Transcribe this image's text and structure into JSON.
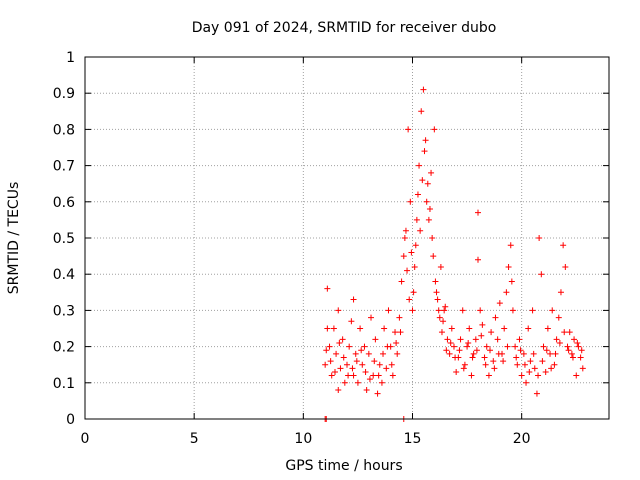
{
  "chart_data": {
    "type": "scatter",
    "title": "Day 091 of 2024, SRMTID for receiver dubo",
    "xlabel": "GPS time / hours",
    "ylabel": "SRMTID / TECUs",
    "xlim": [
      0,
      24
    ],
    "ylim": [
      0,
      1
    ],
    "xticks": [
      0,
      5,
      10,
      15,
      20
    ],
    "xtick_labels": [
      "0",
      "5",
      "10",
      "15",
      "20"
    ],
    "yticks": [
      0,
      0.1,
      0.2,
      0.3,
      0.4,
      0.5,
      0.6,
      0.7,
      0.8,
      0.9,
      1
    ],
    "ytick_labels": [
      "0",
      "0.1",
      "0.2",
      "0.3",
      "0.4",
      "0.5",
      "0.6",
      "0.7",
      "0.8",
      "0.9",
      "1"
    ],
    "grid": true,
    "marker": "+",
    "color": "#ff0000",
    "series": [
      {
        "name": "SRMTID",
        "points": [
          [
            11.0,
            0.0
          ],
          [
            11.05,
            0.0
          ],
          [
            14.6,
            0.0
          ],
          [
            11.0,
            0.15
          ],
          [
            11.1,
            0.25
          ],
          [
            11.1,
            0.36
          ],
          [
            11.2,
            0.2
          ],
          [
            11.3,
            0.12
          ],
          [
            11.4,
            0.25
          ],
          [
            11.5,
            0.18
          ],
          [
            11.6,
            0.08
          ],
          [
            11.6,
            0.3
          ],
          [
            11.7,
            0.14
          ],
          [
            11.8,
            0.22
          ],
          [
            11.9,
            0.1
          ],
          [
            12.0,
            0.15
          ],
          [
            12.1,
            0.2
          ],
          [
            12.2,
            0.27
          ],
          [
            12.3,
            0.33
          ],
          [
            12.3,
            0.12
          ],
          [
            12.4,
            0.18
          ],
          [
            12.5,
            0.1
          ],
          [
            12.6,
            0.25
          ],
          [
            12.7,
            0.15
          ],
          [
            12.8,
            0.2
          ],
          [
            12.9,
            0.08
          ],
          [
            13.0,
            0.18
          ],
          [
            13.1,
            0.28
          ],
          [
            13.2,
            0.12
          ],
          [
            13.3,
            0.22
          ],
          [
            13.4,
            0.07
          ],
          [
            13.5,
            0.15
          ],
          [
            13.6,
            0.1
          ],
          [
            13.7,
            0.25
          ],
          [
            13.8,
            0.14
          ],
          [
            13.9,
            0.3
          ],
          [
            14.0,
            0.2
          ],
          [
            14.1,
            0.12
          ],
          [
            14.2,
            0.24
          ],
          [
            14.3,
            0.18
          ],
          [
            14.4,
            0.28
          ],
          [
            14.5,
            0.38
          ],
          [
            14.6,
            0.45
          ],
          [
            14.7,
            0.52
          ],
          [
            14.8,
            0.8
          ],
          [
            14.9,
            0.6
          ],
          [
            15.0,
            0.3
          ],
          [
            15.1,
            0.42
          ],
          [
            15.2,
            0.55
          ],
          [
            15.3,
            0.7
          ],
          [
            15.4,
            0.85
          ],
          [
            15.5,
            0.91
          ],
          [
            15.6,
            0.77
          ],
          [
            15.7,
            0.65
          ],
          [
            15.8,
            0.58
          ],
          [
            15.9,
            0.5
          ],
          [
            16.0,
            0.8
          ],
          [
            16.1,
            0.35
          ],
          [
            16.2,
            0.3
          ],
          [
            16.3,
            0.42
          ],
          [
            16.4,
            0.27
          ],
          [
            16.5,
            0.31
          ],
          [
            16.6,
            0.22
          ],
          [
            16.7,
            0.18
          ],
          [
            16.8,
            0.25
          ],
          [
            16.9,
            0.2
          ],
          [
            17.0,
            0.13
          ],
          [
            17.1,
            0.17
          ],
          [
            17.2,
            0.22
          ],
          [
            17.3,
            0.3
          ],
          [
            17.4,
            0.15
          ],
          [
            17.5,
            0.2
          ],
          [
            17.6,
            0.25
          ],
          [
            17.7,
            0.12
          ],
          [
            17.8,
            0.18
          ],
          [
            17.9,
            0.22
          ],
          [
            18.0,
            0.44
          ],
          [
            18.0,
            0.57
          ],
          [
            18.1,
            0.3
          ],
          [
            18.2,
            0.26
          ],
          [
            18.3,
            0.17
          ],
          [
            18.4,
            0.2
          ],
          [
            18.5,
            0.12
          ],
          [
            18.6,
            0.24
          ],
          [
            18.7,
            0.16
          ],
          [
            18.8,
            0.28
          ],
          [
            18.9,
            0.22
          ],
          [
            19.0,
            0.32
          ],
          [
            19.1,
            0.18
          ],
          [
            19.2,
            0.25
          ],
          [
            19.3,
            0.35
          ],
          [
            19.4,
            0.42
          ],
          [
            19.5,
            0.48
          ],
          [
            19.6,
            0.3
          ],
          [
            19.7,
            0.2
          ],
          [
            19.8,
            0.15
          ],
          [
            19.9,
            0.22
          ],
          [
            20.0,
            0.12
          ],
          [
            20.1,
            0.18
          ],
          [
            20.2,
            0.1
          ],
          [
            20.3,
            0.25
          ],
          [
            20.4,
            0.16
          ],
          [
            20.5,
            0.3
          ],
          [
            20.6,
            0.14
          ],
          [
            20.7,
            0.07
          ],
          [
            20.8,
            0.5
          ],
          [
            20.9,
            0.4
          ],
          [
            21.0,
            0.2
          ],
          [
            21.1,
            0.13
          ],
          [
            21.2,
            0.25
          ],
          [
            21.3,
            0.18
          ],
          [
            21.4,
            0.3
          ],
          [
            21.5,
            0.15
          ],
          [
            21.6,
            0.22
          ],
          [
            21.7,
            0.28
          ],
          [
            21.8,
            0.35
          ],
          [
            21.9,
            0.48
          ],
          [
            22.0,
            0.42
          ],
          [
            22.1,
            0.2
          ],
          [
            22.2,
            0.24
          ],
          [
            22.3,
            0.18
          ],
          [
            22.4,
            0.22
          ],
          [
            22.5,
            0.12
          ],
          [
            22.6,
            0.2
          ],
          [
            22.7,
            0.17
          ],
          [
            22.8,
            0.14
          ],
          [
            11.05,
            0.19
          ],
          [
            11.25,
            0.16
          ],
          [
            11.45,
            0.13
          ],
          [
            11.65,
            0.21
          ],
          [
            11.85,
            0.17
          ],
          [
            12.05,
            0.12
          ],
          [
            12.25,
            0.14
          ],
          [
            12.45,
            0.16
          ],
          [
            12.65,
            0.19
          ],
          [
            12.85,
            0.13
          ],
          [
            13.05,
            0.11
          ],
          [
            13.25,
            0.16
          ],
          [
            13.45,
            0.12
          ],
          [
            13.65,
            0.18
          ],
          [
            13.85,
            0.2
          ],
          [
            14.05,
            0.15
          ],
          [
            14.25,
            0.21
          ],
          [
            14.45,
            0.24
          ],
          [
            14.65,
            0.5
          ],
          [
            14.75,
            0.41
          ],
          [
            14.85,
            0.33
          ],
          [
            14.95,
            0.46
          ],
          [
            15.05,
            0.35
          ],
          [
            15.15,
            0.48
          ],
          [
            15.25,
            0.62
          ],
          [
            15.35,
            0.52
          ],
          [
            15.45,
            0.66
          ],
          [
            15.55,
            0.74
          ],
          [
            15.65,
            0.6
          ],
          [
            15.75,
            0.55
          ],
          [
            15.85,
            0.68
          ],
          [
            15.95,
            0.45
          ],
          [
            16.05,
            0.38
          ],
          [
            16.15,
            0.33
          ],
          [
            16.25,
            0.28
          ],
          [
            16.35,
            0.24
          ],
          [
            16.45,
            0.3
          ],
          [
            16.55,
            0.19
          ],
          [
            16.75,
            0.21
          ],
          [
            16.95,
            0.17
          ],
          [
            17.15,
            0.19
          ],
          [
            17.35,
            0.14
          ],
          [
            17.55,
            0.21
          ],
          [
            17.75,
            0.17
          ],
          [
            17.95,
            0.19
          ],
          [
            18.15,
            0.23
          ],
          [
            18.35,
            0.15
          ],
          [
            18.55,
            0.19
          ],
          [
            18.75,
            0.14
          ],
          [
            18.95,
            0.18
          ],
          [
            19.15,
            0.16
          ],
          [
            19.35,
            0.2
          ],
          [
            19.55,
            0.38
          ],
          [
            19.75,
            0.17
          ],
          [
            19.95,
            0.19
          ],
          [
            20.15,
            0.15
          ],
          [
            20.35,
            0.13
          ],
          [
            20.55,
            0.18
          ],
          [
            20.75,
            0.12
          ],
          [
            20.95,
            0.16
          ],
          [
            21.15,
            0.19
          ],
          [
            21.35,
            0.14
          ],
          [
            21.55,
            0.18
          ],
          [
            21.75,
            0.21
          ],
          [
            21.95,
            0.24
          ],
          [
            22.15,
            0.19
          ],
          [
            22.35,
            0.17
          ],
          [
            22.55,
            0.21
          ],
          [
            22.75,
            0.19
          ]
        ]
      }
    ]
  }
}
